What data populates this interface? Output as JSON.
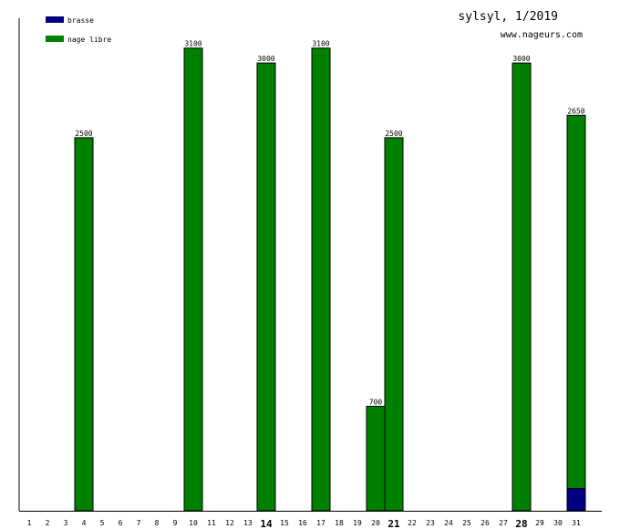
{
  "chart_data": {
    "type": "bar",
    "stacked": true,
    "title": "sylsyl, 1/2019",
    "subtitle": "www.nageurs.com",
    "x": [
      1,
      2,
      3,
      4,
      5,
      6,
      7,
      8,
      9,
      10,
      11,
      12,
      13,
      14,
      15,
      16,
      17,
      18,
      19,
      20,
      21,
      22,
      23,
      24,
      25,
      26,
      27,
      28,
      29,
      30,
      31
    ],
    "major_ticks": [
      14,
      21,
      28
    ],
    "series": [
      {
        "name": "brasse",
        "color": "#000080",
        "values": [
          0,
          0,
          0,
          0,
          0,
          0,
          0,
          0,
          0,
          0,
          0,
          0,
          0,
          0,
          0,
          0,
          0,
          0,
          0,
          0,
          0,
          0,
          0,
          0,
          0,
          0,
          0,
          0,
          0,
          0,
          150
        ]
      },
      {
        "name": "nage libre",
        "color": "#008000",
        "values": [
          0,
          0,
          0,
          2500,
          0,
          0,
          0,
          0,
          0,
          3100,
          0,
          0,
          0,
          3000,
          0,
          0,
          3100,
          0,
          0,
          700,
          2500,
          0,
          0,
          0,
          0,
          0,
          0,
          3000,
          0,
          0,
          2500
        ]
      }
    ],
    "totals": [
      0,
      0,
      0,
      2500,
      0,
      0,
      0,
      0,
      0,
      3100,
      0,
      0,
      0,
      3000,
      0,
      0,
      3100,
      0,
      0,
      700,
      2500,
      0,
      0,
      0,
      0,
      0,
      0,
      3000,
      0,
      0,
      2650
    ],
    "ylim": [
      0,
      3300
    ],
    "grid": false,
    "legend": "top-left"
  }
}
